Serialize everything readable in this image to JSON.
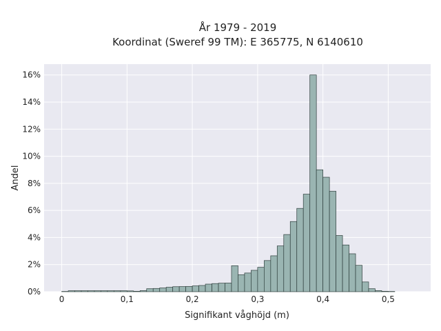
{
  "chart_data": {
    "type": "histogram",
    "title_lines": [
      "År 1979 - 2019",
      "Koordinat (Sweref 99 TM): E 365775, N 6140610"
    ],
    "xlabel": "Signifikant våghöjd (m)",
    "ylabel": "Andel",
    "x_ticks": [
      {
        "value": 0,
        "label": "0"
      },
      {
        "value": 0.1,
        "label": "0,1"
      },
      {
        "value": 0.2,
        "label": "0,2"
      },
      {
        "value": 0.3,
        "label": "0,3"
      },
      {
        "value": 0.4,
        "label": "0,4"
      },
      {
        "value": 0.5,
        "label": "0,5"
      }
    ],
    "y_ticks": [
      {
        "value": 0,
        "label": "0%"
      },
      {
        "value": 2,
        "label": "2%"
      },
      {
        "value": 4,
        "label": "4%"
      },
      {
        "value": 6,
        "label": "6%"
      },
      {
        "value": 8,
        "label": "8%"
      },
      {
        "value": 10,
        "label": "10%"
      },
      {
        "value": 12,
        "label": "12%"
      },
      {
        "value": 14,
        "label": "14%"
      },
      {
        "value": 16,
        "label": "16%"
      }
    ],
    "xlim": [
      -0.027,
      0.565
    ],
    "ylim": [
      0,
      16.8
    ],
    "bin_width": 0.01,
    "bin_start": 0.0,
    "values": [
      0.02,
      0.07,
      0.07,
      0.07,
      0.07,
      0.07,
      0.07,
      0.07,
      0.07,
      0.07,
      0.06,
      0.03,
      0.08,
      0.22,
      0.24,
      0.28,
      0.33,
      0.37,
      0.38,
      0.39,
      0.43,
      0.46,
      0.56,
      0.6,
      0.63,
      0.64,
      1.92,
      1.25,
      1.38,
      1.58,
      1.8,
      2.3,
      2.65,
      3.38,
      4.22,
      5.18,
      6.15,
      7.2,
      16.0,
      9.0,
      8.45,
      7.42,
      4.15,
      3.45,
      2.8,
      1.95,
      0.72,
      0.22,
      0.08,
      0.03,
      0.02
    ],
    "grid": true,
    "colors": {
      "plot_background": "#e9e9f1",
      "grid": "#ffffff",
      "bar_fill": "#9ab5b2",
      "bar_edge": "#2e3e3c"
    }
  }
}
